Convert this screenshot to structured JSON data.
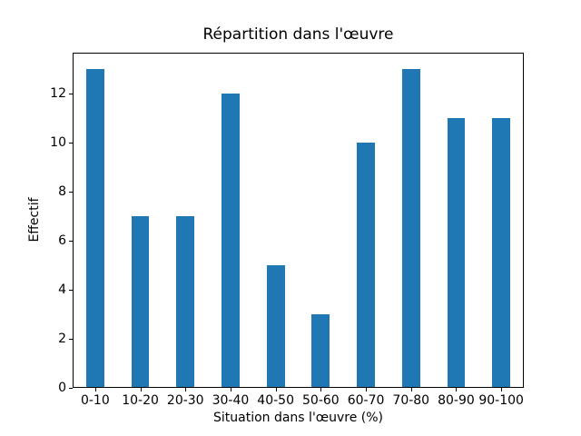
{
  "chart_data": {
    "type": "bar",
    "title": "Répartition dans l'œuvre",
    "xlabel": "Situation dans l'œuvre (%)",
    "ylabel": "Effectif",
    "categories": [
      "0-10",
      "10-20",
      "20-30",
      "30-40",
      "40-50",
      "50-60",
      "60-70",
      "70-80",
      "80-90",
      "90-100"
    ],
    "values": [
      13,
      7,
      7,
      12,
      5,
      3,
      10,
      13,
      11,
      11
    ],
    "yticks": [
      0,
      2,
      4,
      6,
      8,
      10,
      12
    ],
    "ylim": [
      0,
      13.65
    ],
    "bar_color": "#1f77b4",
    "background_color": "#ffffff",
    "axis_color": "#000000",
    "grid": false,
    "legend_position": "none",
    "bar_width_fraction": 0.4
  }
}
